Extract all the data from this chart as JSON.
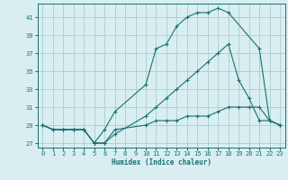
{
  "xlabel": "Humidex (Indice chaleur)",
  "bg_color": "#d8eef0",
  "grid_color": "#aacccc",
  "line_color": "#1a7070",
  "series": [
    {
      "x": [
        0,
        1,
        2,
        3,
        4,
        5,
        6,
        7,
        10,
        11,
        12,
        13,
        14,
        15,
        16,
        17,
        18,
        21,
        22,
        23
      ],
      "y": [
        29,
        28.5,
        28.5,
        28.5,
        28.5,
        27,
        28.5,
        30.5,
        33.5,
        37.5,
        38,
        40,
        41,
        41.5,
        41.5,
        42,
        41.5,
        37.5,
        29.5,
        29
      ]
    },
    {
      "x": [
        0,
        1,
        2,
        3,
        4,
        5,
        6,
        7,
        10,
        11,
        12,
        13,
        14,
        15,
        16,
        17,
        18,
        19,
        20,
        21,
        22,
        23
      ],
      "y": [
        29,
        28.5,
        28.5,
        28.5,
        28.5,
        27,
        27,
        28,
        30,
        31,
        32,
        33,
        34,
        35,
        36,
        37,
        38,
        34,
        32,
        29.5,
        29.5,
        29
      ]
    },
    {
      "x": [
        0,
        1,
        2,
        3,
        4,
        5,
        6,
        7,
        10,
        11,
        12,
        13,
        14,
        15,
        16,
        17,
        18,
        19,
        20,
        21,
        22,
        23
      ],
      "y": [
        29,
        28.5,
        28.5,
        28.5,
        28.5,
        27,
        27,
        28.5,
        29,
        29.5,
        29.5,
        29.5,
        30,
        30,
        30,
        30.5,
        31,
        31,
        31,
        31,
        29.5,
        29
      ]
    }
  ],
  "ylim": [
    26.5,
    42.5
  ],
  "xlim": [
    -0.5,
    23.5
  ],
  "yticks": [
    27,
    29,
    31,
    33,
    35,
    37,
    39,
    41
  ],
  "xticks": [
    0,
    1,
    2,
    3,
    4,
    5,
    6,
    7,
    8,
    9,
    10,
    11,
    12,
    13,
    14,
    15,
    16,
    17,
    18,
    19,
    20,
    21,
    22,
    23
  ]
}
